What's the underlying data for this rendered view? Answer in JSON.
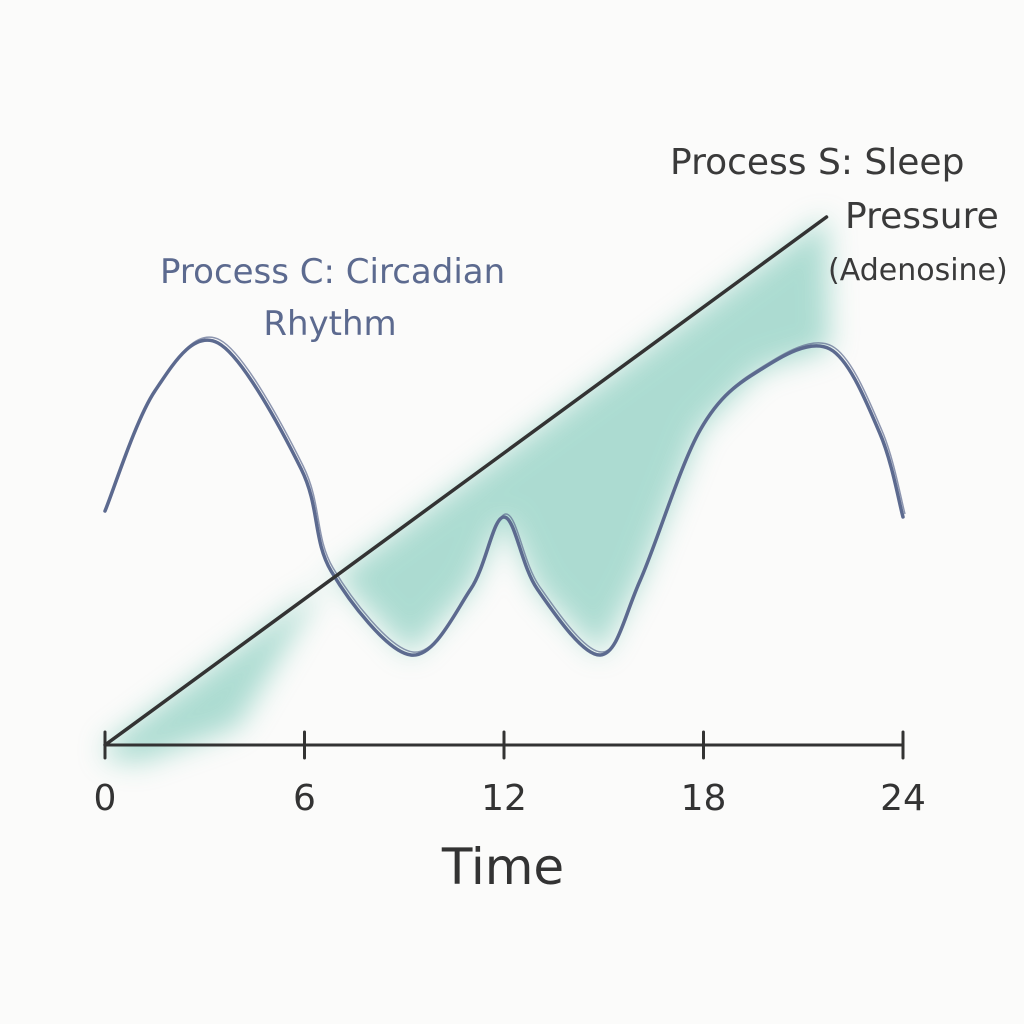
{
  "chart_data": {
    "type": "line",
    "title": "",
    "xlabel": "Time",
    "ylabel": "",
    "xlim": [
      0,
      24
    ],
    "ylim": [
      0,
      10
    ],
    "grid": false,
    "x_ticks": [
      "0",
      "6",
      "12",
      "18",
      "24"
    ],
    "series": [
      {
        "name": "Process C: Circadian Rhythm",
        "color": "#5c6a8f",
        "x": [
          0,
          1.5,
          3.4,
          5.9,
          6.8,
          9.2,
          11,
          12,
          13,
          14.9,
          16.1,
          17.9,
          19.7,
          21.8,
          23.3,
          24
        ],
        "y": [
          3.9,
          5.9,
          6.7,
          4.6,
          2.9,
          1.5,
          2.6,
          3.8,
          2.6,
          1.5,
          2.75,
          5.25,
          6.25,
          6.6,
          5.2,
          3.8
        ]
      },
      {
        "name": "Process S: Sleep Pressure (Adenosine)",
        "color": "#333333",
        "x": [
          0,
          21.7
        ],
        "y": [
          0,
          8.8
        ]
      }
    ],
    "fill_color": "#6cc2b0",
    "annotations": {
      "c_label": [
        "Process C: Circadian",
        "Rhythm"
      ],
      "s_label": [
        "Process S: Sleep",
        "Pressure",
        "(Adenosine)"
      ]
    }
  }
}
